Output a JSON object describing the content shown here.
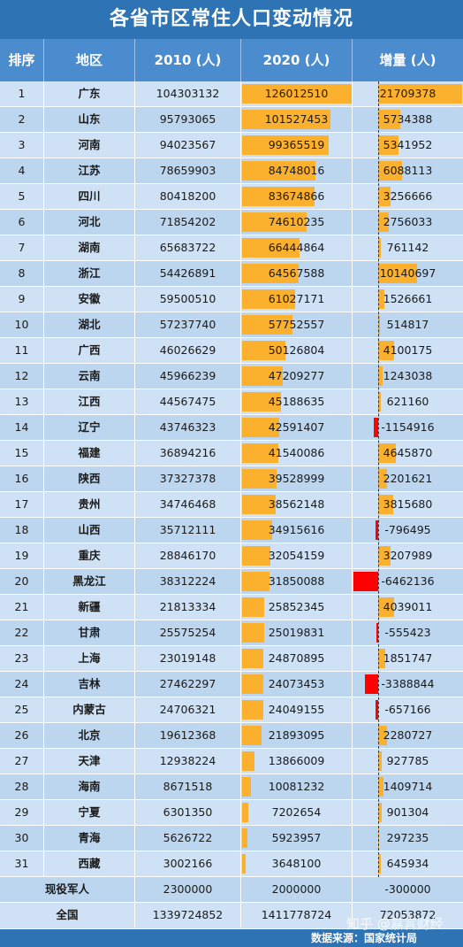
{
  "title": "各省市区常住人口变动情况",
  "headers": [
    "排序",
    "地区",
    "2010 (人)",
    "2020 (人)",
    "增量 (人)"
  ],
  "rows": [
    {
      "rank": "1",
      "region": "广东",
      "p2010": 104303132,
      "p2020": 126012510,
      "inc": 21709378
    },
    {
      "rank": "2",
      "region": "山东",
      "p2010": 95793065,
      "p2020": 101527453,
      "inc": 5734388
    },
    {
      "rank": "3",
      "region": "河南",
      "p2010": 94023567,
      "p2020": 99365519,
      "inc": 5341952
    },
    {
      "rank": "4",
      "region": "江苏",
      "p2010": 78659903,
      "p2020": 84748016,
      "inc": 6088113
    },
    {
      "rank": "5",
      "region": "四川",
      "p2010": 80418200,
      "p2020": 83674866,
      "inc": 3256666
    },
    {
      "rank": "6",
      "region": "河北",
      "p2010": 71854202,
      "p2020": 74610235,
      "inc": 2756033
    },
    {
      "rank": "7",
      "region": "湖南",
      "p2010": 65683722,
      "p2020": 66444864,
      "inc": 761142
    },
    {
      "rank": "8",
      "region": "浙江",
      "p2010": 54426891,
      "p2020": 64567588,
      "inc": 10140697
    },
    {
      "rank": "9",
      "region": "安徽",
      "p2010": 59500510,
      "p2020": 61027171,
      "inc": 1526661
    },
    {
      "rank": "10",
      "region": "湖北",
      "p2010": 57237740,
      "p2020": 57752557,
      "inc": 514817
    },
    {
      "rank": "11",
      "region": "广西",
      "p2010": 46026629,
      "p2020": 50126804,
      "inc": 4100175
    },
    {
      "rank": "12",
      "region": "云南",
      "p2010": 45966239,
      "p2020": 47209277,
      "inc": 1243038
    },
    {
      "rank": "13",
      "region": "江西",
      "p2010": 44567475,
      "p2020": 45188635,
      "inc": 621160
    },
    {
      "rank": "14",
      "region": "辽宁",
      "p2010": 43746323,
      "p2020": 42591407,
      "inc": -1154916
    },
    {
      "rank": "15",
      "region": "福建",
      "p2010": 36894216,
      "p2020": 41540086,
      "inc": 4645870
    },
    {
      "rank": "16",
      "region": "陕西",
      "p2010": 37327378,
      "p2020": 39528999,
      "inc": 2201621
    },
    {
      "rank": "17",
      "region": "贵州",
      "p2010": 34746468,
      "p2020": 38562148,
      "inc": 3815680
    },
    {
      "rank": "18",
      "region": "山西",
      "p2010": 35712111,
      "p2020": 34915616,
      "inc": -796495
    },
    {
      "rank": "19",
      "region": "重庆",
      "p2010": 28846170,
      "p2020": 32054159,
      "inc": 3207989
    },
    {
      "rank": "20",
      "region": "黑龙江",
      "p2010": 38312224,
      "p2020": 31850088,
      "inc": -6462136
    },
    {
      "rank": "21",
      "region": "新疆",
      "p2010": 21813334,
      "p2020": 25852345,
      "inc": 4039011
    },
    {
      "rank": "22",
      "region": "甘肃",
      "p2010": 25575254,
      "p2020": 25019831,
      "inc": -555423
    },
    {
      "rank": "23",
      "region": "上海",
      "p2010": 23019148,
      "p2020": 24870895,
      "inc": 1851747
    },
    {
      "rank": "24",
      "region": "吉林",
      "p2010": 27462297,
      "p2020": 24073453,
      "inc": -3388844
    },
    {
      "rank": "25",
      "region": "内蒙古",
      "p2010": 24706321,
      "p2020": 24049155,
      "inc": -657166
    },
    {
      "rank": "26",
      "region": "北京",
      "p2010": 19612368,
      "p2020": 21893095,
      "inc": 2280727
    },
    {
      "rank": "27",
      "region": "天津",
      "p2010": 12938224,
      "p2020": 13866009,
      "inc": 927785
    },
    {
      "rank": "28",
      "region": "海南",
      "p2010": 8671518,
      "p2020": 10081232,
      "inc": 1409714
    },
    {
      "rank": "29",
      "region": "宁夏",
      "p2010": 6301350,
      "p2020": 7202654,
      "inc": 901304
    },
    {
      "rank": "30",
      "region": "青海",
      "p2010": 5626722,
      "p2020": 5923957,
      "inc": 297235
    },
    {
      "rank": "31",
      "region": "西藏",
      "p2010": 3002166,
      "p2020": 3648100,
      "inc": 645934
    }
  ],
  "summary": [
    {
      "label": "现役军人",
      "p2010": "2300000",
      "p2020": "2000000",
      "inc": "-300000"
    },
    {
      "label": "全国",
      "p2010": "1339724852",
      "p2020": "1411778724",
      "inc": "72053872"
    }
  ],
  "source": "数据来源：国家统计局",
  "watermark": "知乎 @嘉言财经",
  "colors": {
    "title_bg": "#2e74b5",
    "header_bg": "#4b8ccf",
    "bar_2020": "#fbb12e",
    "inc_positive": "#fbb12e",
    "inc_negative": "#ff0000"
  }
}
